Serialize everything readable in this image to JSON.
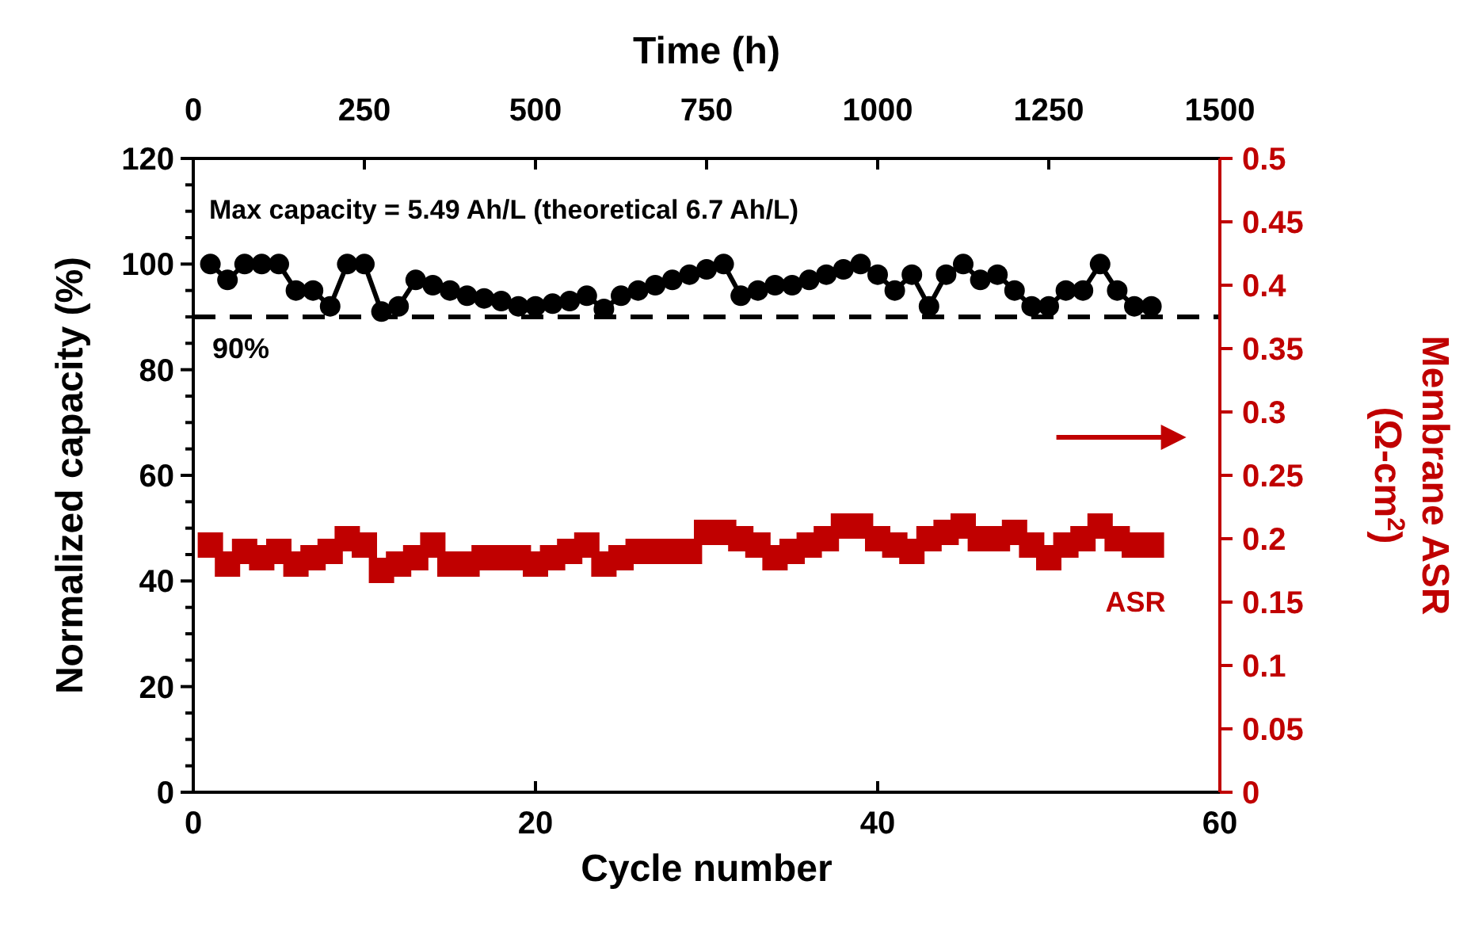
{
  "chart_data": {
    "type": "line",
    "xlabel": "Cycle number",
    "ylabel": "Normalized capacity (%)",
    "y2label": "Membrane ASR (Ω-cm$^{2}$)",
    "x2label": "Time (h)",
    "xlim": [
      0,
      60
    ],
    "xticks": [
      0,
      20,
      40,
      60
    ],
    "ylim": [
      0,
      120
    ],
    "yticks": [
      0,
      {
        "value": 5,
        "label": null
      },
      {
        "value": 10,
        "label": null
      },
      {
        "value": 15,
        "label": null
      },
      20,
      {
        "value": 25,
        "label": null
      },
      {
        "value": 30,
        "label": null
      },
      {
        "value": 35,
        "label": null
      },
      40,
      {
        "value": 45,
        "label": null
      },
      {
        "value": 50,
        "label": null
      },
      {
        "value": 55,
        "label": null
      },
      60,
      {
        "value": 65,
        "label": null
      },
      {
        "value": 70,
        "label": null
      },
      {
        "value": 75,
        "label": null
      },
      80,
      {
        "value": 85,
        "label": null
      },
      {
        "value": 90,
        "label": null
      },
      {
        "value": 95,
        "label": null
      },
      100,
      {
        "value": 105,
        "label": null
      },
      {
        "value": 110,
        "label": null
      },
      {
        "value": 115,
        "label": null
      },
      120
    ],
    "y2lim": [
      0,
      0.5
    ],
    "y2ticks": [
      0,
      0.05,
      0.1,
      0.15,
      0.2,
      0.25,
      0.3,
      0.35,
      0.4,
      0.45,
      0.5
    ],
    "x2lim": [
      0,
      1500
    ],
    "x2ticks": [
      0,
      250,
      500,
      750,
      1000,
      1250,
      1500
    ],
    "x": [
      1,
      2,
      3,
      4,
      5,
      6,
      7,
      8,
      9,
      10,
      11,
      12,
      13,
      14,
      15,
      16,
      17,
      18,
      19,
      20,
      21,
      22,
      23,
      24,
      25,
      26,
      27,
      28,
      29,
      30,
      31,
      32,
      33,
      34,
      35,
      36,
      37,
      38,
      39,
      40,
      41,
      42,
      43,
      44,
      45,
      46,
      47,
      48,
      49,
      50,
      51,
      52,
      53,
      54,
      55,
      56
    ],
    "series": [
      {
        "color": "#000000",
        "marker": "circle",
        "values": [
          100,
          97,
          100,
          100,
          100,
          95,
          95,
          92,
          100,
          100,
          91,
          92,
          97,
          96,
          95,
          94,
          93.5,
          93,
          92,
          92,
          92.5,
          93,
          94,
          91.5,
          94,
          95,
          96,
          97,
          98,
          99,
          100,
          94,
          95,
          96,
          96,
          97,
          98,
          99,
          100,
          98,
          95,
          98,
          92,
          98,
          100,
          97,
          98,
          95,
          92,
          92,
          95,
          95,
          100,
          95,
          92,
          92
        ]
      },
      {
        "type": "scatter",
        "name": "ASR",
        "axis": "y2",
        "color": "#c00000",
        "marker": "square",
        "values": [
          0.195,
          0.18,
          0.19,
          0.185,
          0.19,
          0.18,
          0.185,
          0.19,
          0.2,
          0.195,
          0.175,
          0.18,
          0.185,
          0.195,
          0.18,
          0.18,
          0.185,
          0.185,
          0.185,
          0.18,
          0.185,
          0.19,
          0.195,
          0.18,
          0.185,
          0.19,
          0.19,
          0.19,
          0.19,
          0.205,
          0.205,
          0.2,
          0.195,
          0.185,
          0.19,
          0.195,
          0.2,
          0.21,
          0.21,
          0.2,
          0.195,
          0.19,
          0.2,
          0.205,
          0.21,
          0.2,
          0.2,
          0.205,
          0.195,
          0.185,
          0.195,
          0.2,
          0.21,
          0.2,
          0.195,
          0.195
        ]
      }
    ],
    "ref_lines": [
      {
        "axis": "y",
        "value": 90,
        "label": "90%",
        "color": "#000000",
        "line_style": "dashed"
      }
    ],
    "annotations": [
      "Max capacity = 5.49 Ah/L (theoretical 6.7 Ah/L)"
    ],
    "grid": false
  }
}
